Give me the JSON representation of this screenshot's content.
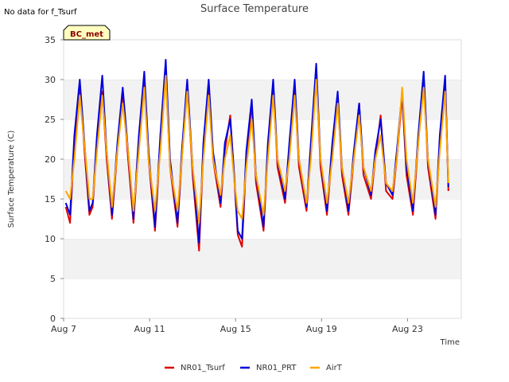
{
  "note": "No data for f_Tsurf",
  "badge": "BC_met",
  "chart_data": {
    "type": "line",
    "title": "Surface Temperature",
    "xlabel": "Time",
    "ylabel": "Surface Temperature (C)",
    "ylim": [
      0,
      35
    ],
    "yticks": [
      0,
      5,
      10,
      15,
      20,
      25,
      30,
      35
    ],
    "xlim": [
      7,
      25.5
    ],
    "xticks": [
      {
        "value": 7,
        "label": "Aug 7"
      },
      {
        "value": 11,
        "label": "Aug 11"
      },
      {
        "value": 15,
        "label": "Aug 15"
      },
      {
        "value": 19,
        "label": "Aug 19"
      },
      {
        "value": 23,
        "label": "Aug 23"
      }
    ],
    "x_unit": "day of August",
    "grid": "horizontal bands",
    "legend_position": "bottom",
    "series": [
      {
        "name": "NR01_Tsurf",
        "color": "#dd0000",
        "x": [
          7.1,
          7.3,
          7.5,
          7.75,
          8.0,
          8.2,
          8.35,
          8.55,
          8.8,
          9.0,
          9.25,
          9.5,
          9.75,
          10.0,
          10.25,
          10.5,
          10.75,
          10.95,
          11.25,
          11.5,
          11.75,
          11.95,
          12.3,
          12.5,
          12.75,
          13.0,
          13.3,
          13.5,
          13.75,
          13.95,
          14.3,
          14.5,
          14.75,
          14.95,
          15.1,
          15.3,
          15.5,
          15.75,
          15.95,
          16.3,
          16.5,
          16.75,
          16.95,
          17.3,
          17.5,
          17.75,
          17.95,
          18.3,
          18.5,
          18.75,
          18.95,
          19.25,
          19.5,
          19.75,
          19.95,
          20.25,
          20.5,
          20.75,
          20.95,
          21.3,
          21.5,
          21.75,
          22.0,
          22.3,
          22.5,
          22.75,
          22.95,
          23.25,
          23.5,
          23.75,
          23.95,
          24.3,
          24.5,
          24.75,
          24.9
        ],
        "y": [
          14,
          12,
          22,
          29.5,
          20,
          13,
          14,
          22,
          28.5,
          20,
          12.5,
          21,
          28.5,
          20,
          12,
          22,
          30,
          20,
          11,
          22,
          31,
          19,
          11.5,
          20,
          29.5,
          18,
          8.5,
          21,
          29.5,
          20,
          14,
          21,
          25.5,
          17,
          10.5,
          9,
          20,
          27,
          17,
          11,
          21,
          29.5,
          19,
          14.5,
          21,
          29,
          19,
          13.5,
          21,
          31,
          19,
          13,
          21,
          28,
          18,
          13,
          20,
          27,
          18,
          15,
          20,
          25.5,
          16,
          15,
          20,
          28,
          18,
          13,
          22,
          30.5,
          19,
          12.5,
          22,
          30,
          16
        ]
      },
      {
        "name": "NR01_PRT",
        "color": "#0000dd",
        "x": [
          7.1,
          7.3,
          7.5,
          7.75,
          8.0,
          8.2,
          8.35,
          8.55,
          8.8,
          9.0,
          9.25,
          9.5,
          9.75,
          10.0,
          10.25,
          10.5,
          10.75,
          10.95,
          11.25,
          11.5,
          11.75,
          11.95,
          12.3,
          12.5,
          12.75,
          13.0,
          13.3,
          13.5,
          13.75,
          13.95,
          14.3,
          14.5,
          14.75,
          14.95,
          15.1,
          15.3,
          15.5,
          15.75,
          15.95,
          16.3,
          16.5,
          16.75,
          16.95,
          17.3,
          17.5,
          17.75,
          17.95,
          18.3,
          18.5,
          18.75,
          18.95,
          19.25,
          19.5,
          19.75,
          19.95,
          20.25,
          20.5,
          20.75,
          20.95,
          21.3,
          21.5,
          21.75,
          22.0,
          22.3,
          22.5,
          22.75,
          22.95,
          23.25,
          23.5,
          23.75,
          23.95,
          24.3,
          24.5,
          24.75,
          24.9
        ],
        "y": [
          14.5,
          13,
          23,
          30,
          21,
          13.5,
          14.5,
          23,
          30.5,
          21,
          13,
          22,
          29,
          21,
          12.5,
          23,
          31,
          21,
          11.5,
          23,
          32.5,
          20,
          12,
          21,
          30,
          19,
          9.5,
          22,
          30,
          21,
          14.5,
          22,
          25,
          17.5,
          11,
          10,
          21,
          27.5,
          18,
          11.5,
          22,
          30,
          20,
          15,
          22,
          30,
          20,
          14,
          22,
          32,
          20,
          13.5,
          22,
          28.5,
          19,
          13.5,
          21,
          27,
          19,
          15.5,
          21,
          25,
          17,
          15.5,
          21,
          28.5,
          19,
          13.5,
          23,
          31,
          20,
          13,
          23,
          30.5,
          16.5
        ]
      },
      {
        "name": "AirT",
        "color": "#ffa500",
        "x": [
          7.1,
          7.3,
          7.5,
          7.75,
          8.0,
          8.2,
          8.35,
          8.55,
          8.8,
          9.0,
          9.25,
          9.5,
          9.75,
          10.0,
          10.25,
          10.5,
          10.75,
          10.95,
          11.25,
          11.5,
          11.75,
          11.95,
          12.3,
          12.5,
          12.75,
          13.0,
          13.3,
          13.5,
          13.75,
          13.95,
          14.3,
          14.5,
          14.75,
          14.95,
          15.1,
          15.3,
          15.5,
          15.75,
          15.95,
          16.3,
          16.5,
          16.75,
          16.95,
          17.3,
          17.5,
          17.75,
          17.95,
          18.3,
          18.5,
          18.75,
          18.95,
          19.25,
          19.5,
          19.75,
          19.95,
          20.25,
          20.5,
          20.75,
          20.95,
          21.3,
          21.5,
          21.75,
          22.0,
          22.3,
          22.5,
          22.75,
          22.95,
          23.25,
          23.5,
          23.75,
          23.95,
          24.3,
          24.5,
          24.75,
          24.9
        ],
        "y": [
          16,
          15,
          20,
          28,
          21,
          15,
          15,
          21,
          28,
          21,
          14,
          21,
          27,
          21,
          13.5,
          21,
          29,
          20,
          13.5,
          21,
          30.5,
          19,
          13.5,
          20,
          28.5,
          19,
          12,
          20,
          28,
          20,
          15.5,
          20,
          23,
          17,
          13.5,
          12.5,
          19,
          25,
          18,
          13,
          20,
          28,
          20,
          16,
          20,
          28,
          20,
          14.5,
          20,
          30,
          20,
          14.5,
          20,
          27,
          19,
          14.5,
          20,
          25.5,
          19,
          16,
          20,
          23,
          17,
          16,
          20,
          29,
          20,
          14.5,
          22,
          29,
          20,
          14,
          21,
          28.5,
          17
        ]
      }
    ]
  }
}
